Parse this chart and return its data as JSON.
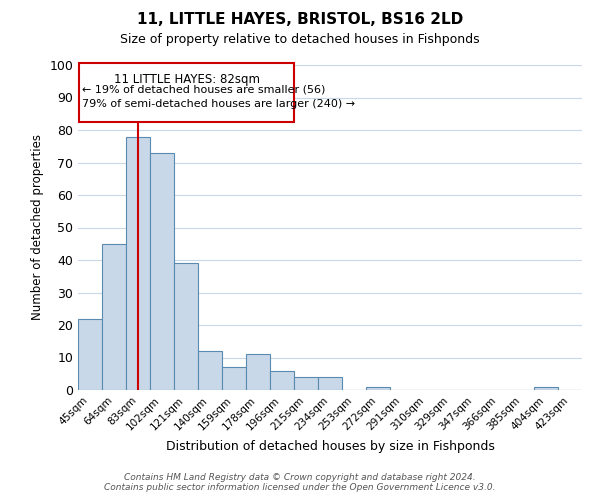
{
  "title": "11, LITTLE HAYES, BRISTOL, BS16 2LD",
  "subtitle": "Size of property relative to detached houses in Fishponds",
  "xlabel": "Distribution of detached houses by size in Fishponds",
  "ylabel": "Number of detached properties",
  "bar_labels": [
    "45sqm",
    "64sqm",
    "83sqm",
    "102sqm",
    "121sqm",
    "140sqm",
    "159sqm",
    "178sqm",
    "196sqm",
    "215sqm",
    "234sqm",
    "253sqm",
    "272sqm",
    "291sqm",
    "310sqm",
    "329sqm",
    "347sqm",
    "366sqm",
    "385sqm",
    "404sqm",
    "423sqm"
  ],
  "bar_values": [
    22,
    45,
    78,
    73,
    39,
    12,
    7,
    11,
    6,
    4,
    4,
    0,
    1,
    0,
    0,
    0,
    0,
    0,
    0,
    1,
    0
  ],
  "bar_color": "#c8d8e8",
  "bar_edge_color": "#5a8ab0",
  "vline_x": 2,
  "vline_color": "#cc0000",
  "ylim": [
    0,
    100
  ],
  "annotation_title": "11 LITTLE HAYES: 82sqm",
  "annotation_line1": "← 19% of detached houses are smaller (56)",
  "annotation_line2": "79% of semi-detached houses are larger (240) →",
  "annotation_box_color": "#ffffff",
  "annotation_box_edge_color": "#cc0000",
  "footer_line1": "Contains HM Land Registry data © Crown copyright and database right 2024.",
  "footer_line2": "Contains public sector information licensed under the Open Government Licence v3.0.",
  "bg_color": "#ffffff",
  "grid_color": "#c8d8e8"
}
